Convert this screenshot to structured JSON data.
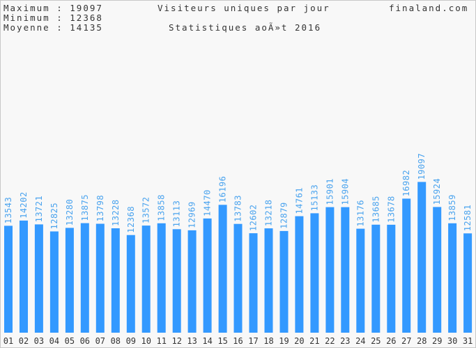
{
  "header": {
    "max_label": "Maximum : ",
    "max_value": "19097",
    "min_label": "Minimum : ",
    "min_value": "12368",
    "avg_label": "Moyenne : ",
    "avg_value": "14135",
    "site": "finaland.com"
  },
  "chart_data": {
    "type": "bar",
    "title": "Visiteurs uniques par jour",
    "subtitle": "Statistiques aoÃ»t 2016",
    "xlabel": "",
    "ylabel": "",
    "categories": [
      "01",
      "02",
      "03",
      "04",
      "05",
      "06",
      "07",
      "08",
      "09",
      "10",
      "11",
      "12",
      "13",
      "14",
      "15",
      "16",
      "17",
      "18",
      "19",
      "20",
      "21",
      "22",
      "23",
      "24",
      "25",
      "26",
      "27",
      "28",
      "29",
      "30",
      "31"
    ],
    "values": [
      13543,
      14202,
      13721,
      12825,
      13280,
      13875,
      13798,
      13228,
      12368,
      13572,
      13858,
      13113,
      12969,
      14470,
      16196,
      13783,
      12602,
      13218,
      12879,
      14761,
      15133,
      15901,
      15904,
      13176,
      13685,
      13678,
      16982,
      19097,
      15924,
      13859,
      12581
    ],
    "ylim": [
      0,
      38000
    ],
    "grid": false,
    "bar_color": "#3399ff"
  }
}
